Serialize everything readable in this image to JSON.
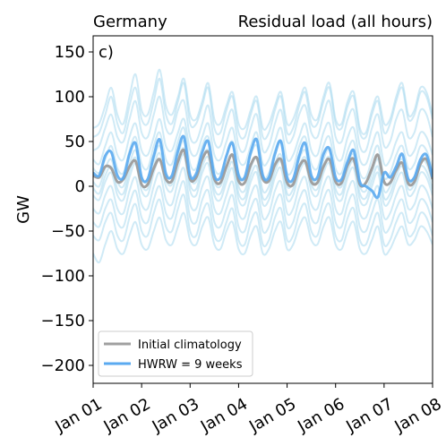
{
  "chart_data": {
    "type": "line",
    "title_left": "Germany",
    "title_right": "Residual load (all hours)",
    "panel_label": "c)",
    "ylabel": "GW",
    "xlabel": "",
    "ylim": [
      -220,
      168
    ],
    "xlim": [
      0,
      168
    ],
    "y_ticks": [
      -200,
      -150,
      -100,
      -50,
      0,
      50,
      100,
      150
    ],
    "y_tick_labels": [
      "−200",
      "−150",
      "−100",
      "−50",
      "0",
      "50",
      "100",
      "150"
    ],
    "x_ticks": [
      0,
      24,
      48,
      72,
      96,
      120,
      144,
      168
    ],
    "x_tick_labels": [
      "Jan 01",
      "Jan 02",
      "Jan 03",
      "Jan 04",
      "Jan 05",
      "Jan 06",
      "Jan 07",
      "Jan 08"
    ],
    "grid": false,
    "legend_position": "lower-left",
    "colors": {
      "climatology": "#a0a0a0",
      "hwrw": "#5aaaf0",
      "ensemble": "#a8d8ee"
    },
    "series": [
      {
        "name": "Initial climatology",
        "x": [
          0,
          3,
          6,
          9,
          12,
          15,
          18,
          21,
          24,
          27,
          30,
          33,
          36,
          39,
          42,
          45,
          48,
          51,
          54,
          57,
          60,
          63,
          66,
          69,
          72,
          75,
          78,
          81,
          84,
          87,
          90,
          93,
          96,
          99,
          102,
          105,
          108,
          111,
          114,
          117,
          120,
          123,
          126,
          129,
          132,
          135,
          138,
          141,
          144,
          147,
          150,
          153,
          156,
          159,
          162,
          165,
          168
        ],
        "values": [
          12,
          10,
          22,
          20,
          5,
          8,
          22,
          28,
          2,
          2,
          20,
          30,
          8,
          6,
          28,
          40,
          8,
          10,
          30,
          38,
          8,
          4,
          22,
          35,
          6,
          4,
          24,
          32,
          8,
          6,
          24,
          30,
          4,
          2,
          22,
          28,
          5,
          4,
          22,
          30,
          5,
          4,
          24,
          30,
          2,
          4,
          20,
          35,
          5,
          4,
          18,
          26,
          3,
          5,
          25,
          30,
          8
        ]
      },
      {
        "name": "HWRW = 9 weeks",
        "x": [
          0,
          3,
          6,
          9,
          12,
          15,
          18,
          21,
          24,
          27,
          30,
          33,
          36,
          39,
          42,
          45,
          48,
          51,
          54,
          57,
          60,
          63,
          66,
          69,
          72,
          75,
          78,
          81,
          84,
          87,
          90,
          93,
          96,
          99,
          102,
          105,
          108,
          111,
          114,
          117,
          120,
          123,
          126,
          129,
          132,
          135,
          138,
          141,
          144,
          147,
          150,
          153,
          156,
          159,
          162,
          165,
          168
        ],
        "values": [
          15,
          12,
          34,
          38,
          12,
          10,
          36,
          48,
          10,
          8,
          34,
          52,
          14,
          12,
          40,
          55,
          12,
          14,
          38,
          50,
          12,
          10,
          34,
          48,
          12,
          10,
          38,
          52,
          12,
          10,
          36,
          50,
          10,
          8,
          34,
          48,
          12,
          10,
          36,
          42,
          10,
          8,
          28,
          40,
          5,
          0,
          -5,
          -12,
          15,
          10,
          22,
          36,
          8,
          10,
          30,
          35,
          10
        ]
      }
    ],
    "ensemble_members": [
      {
        "values": [
          55,
          60,
          80,
          100,
          70,
          60,
          90,
          110,
          75,
          70,
          95,
          120,
          80,
          70,
          95,
          115,
          70,
          70,
          90,
          110,
          65,
          60,
          85,
          100,
          60,
          55,
          80,
          95,
          55,
          60,
          85,
          100,
          60,
          65,
          90,
          105,
          70,
          70,
          95,
          110,
          70,
          65,
          90,
          100,
          60,
          55,
          80,
          95,
          60,
          70,
          95,
          110,
          75,
          80,
          105,
          100,
          75
        ]
      },
      {
        "values": [
          40,
          45,
          65,
          80,
          55,
          50,
          75,
          95,
          60,
          55,
          80,
          100,
          65,
          60,
          85,
          95,
          55,
          50,
          70,
          90,
          50,
          45,
          70,
          85,
          45,
          40,
          65,
          80,
          40,
          45,
          70,
          85,
          50,
          55,
          80,
          90,
          60,
          55,
          80,
          95,
          55,
          50,
          75,
          85,
          45,
          40,
          65,
          80,
          45,
          50,
          75,
          85,
          55,
          60,
          85,
          80,
          55
        ]
      },
      {
        "values": [
          30,
          25,
          45,
          60,
          35,
          30,
          55,
          70,
          40,
          35,
          55,
          75,
          45,
          40,
          60,
          75,
          40,
          35,
          55,
          70,
          35,
          30,
          50,
          65,
          30,
          25,
          45,
          60,
          25,
          30,
          50,
          65,
          30,
          35,
          55,
          70,
          40,
          35,
          60,
          70,
          35,
          30,
          55,
          65,
          30,
          25,
          45,
          60,
          25,
          30,
          50,
          60,
          35,
          40,
          60,
          55,
          35
        ]
      },
      {
        "values": [
          20,
          15,
          30,
          45,
          20,
          15,
          40,
          55,
          25,
          20,
          45,
          60,
          30,
          25,
          50,
          65,
          25,
          20,
          45,
          55,
          20,
          15,
          35,
          50,
          15,
          10,
          35,
          45,
          10,
          15,
          40,
          50,
          15,
          20,
          45,
          55,
          25,
          20,
          45,
          55,
          20,
          15,
          40,
          50,
          15,
          10,
          30,
          45,
          10,
          15,
          35,
          45,
          20,
          25,
          45,
          40,
          20
        ]
      },
      {
        "values": [
          5,
          0,
          20,
          30,
          5,
          0,
          25,
          40,
          10,
          5,
          30,
          45,
          15,
          10,
          35,
          50,
          10,
          5,
          30,
          40,
          5,
          0,
          20,
          35,
          0,
          -5,
          20,
          30,
          -5,
          0,
          25,
          35,
          0,
          5,
          30,
          40,
          10,
          5,
          30,
          40,
          5,
          0,
          25,
          35,
          0,
          -5,
          15,
          30,
          -5,
          0,
          20,
          30,
          5,
          10,
          30,
          25,
          5
        ]
      },
      {
        "values": [
          -10,
          -15,
          5,
          15,
          -10,
          -15,
          10,
          25,
          -5,
          -10,
          15,
          30,
          0,
          -5,
          20,
          35,
          -5,
          -10,
          15,
          25,
          -10,
          -15,
          5,
          20,
          -15,
          -20,
          5,
          15,
          -20,
          -15,
          10,
          20,
          -15,
          -10,
          15,
          25,
          -5,
          -10,
          15,
          25,
          -10,
          -15,
          10,
          20,
          -15,
          -20,
          0,
          15,
          -20,
          -15,
          5,
          15,
          -10,
          -5,
          15,
          10,
          -10
        ]
      },
      {
        "values": [
          -25,
          -30,
          -10,
          0,
          -25,
          -30,
          -5,
          10,
          -20,
          -25,
          0,
          15,
          -15,
          -20,
          5,
          20,
          -20,
          -25,
          0,
          10,
          -25,
          -30,
          -10,
          5,
          -30,
          -35,
          -10,
          0,
          -35,
          -30,
          -5,
          5,
          -30,
          -25,
          0,
          10,
          -20,
          -25,
          0,
          10,
          -25,
          -30,
          -5,
          5,
          -30,
          -35,
          -15,
          0,
          -35,
          -30,
          -10,
          0,
          -25,
          -20,
          0,
          -5,
          -25
        ]
      },
      {
        "values": [
          -40,
          -45,
          -25,
          -15,
          -40,
          -45,
          -20,
          -5,
          -35,
          -40,
          -15,
          0,
          -30,
          -35,
          -10,
          5,
          -35,
          -40,
          -15,
          -5,
          -40,
          -45,
          -25,
          -10,
          -45,
          -50,
          -25,
          -15,
          -50,
          -45,
          -20,
          -10,
          -45,
          -40,
          -15,
          -5,
          -35,
          -40,
          -15,
          -5,
          -40,
          -45,
          -20,
          -10,
          -45,
          -50,
          -30,
          -15,
          -50,
          -45,
          -25,
          -15,
          -40,
          -35,
          -15,
          -20,
          -40
        ]
      },
      {
        "values": [
          -55,
          -60,
          -40,
          -30,
          -55,
          -60,
          -35,
          -20,
          -50,
          -55,
          -30,
          -15,
          -45,
          -50,
          -25,
          -10,
          -50,
          -55,
          -30,
          -20,
          -55,
          -60,
          -40,
          -25,
          -60,
          -65,
          -40,
          -30,
          -65,
          -60,
          -35,
          -25,
          -60,
          -55,
          -30,
          -20,
          -50,
          -55,
          -30,
          -20,
          -55,
          -60,
          -35,
          -25,
          -60,
          -65,
          -45,
          -30,
          -65,
          -60,
          -40,
          -30,
          -55,
          -50,
          -30,
          -35,
          -55
        ]
      },
      {
        "values": [
          -75,
          -85,
          -65,
          -50,
          -70,
          -75,
          -55,
          -40,
          -65,
          -70,
          -50,
          -35,
          -60,
          -65,
          -45,
          -30,
          -60,
          -65,
          -45,
          -35,
          -65,
          -70,
          -50,
          -40,
          -70,
          -75,
          -55,
          -45,
          -75,
          -70,
          -50,
          -40,
          -70,
          -65,
          -45,
          -35,
          -60,
          -65,
          -45,
          -35,
          -65,
          -70,
          -50,
          -40,
          -70,
          -75,
          -60,
          -45,
          -75,
          -70,
          -55,
          -45,
          -65,
          -60,
          -45,
          -50,
          -65
        ]
      },
      {
        "values": [
          65,
          70,
          90,
          110,
          80,
          70,
          100,
          125,
          85,
          80,
          105,
          130,
          90,
          80,
          100,
          120,
          80,
          75,
          95,
          115,
          75,
          70,
          90,
          105,
          70,
          65,
          85,
          100,
          65,
          70,
          90,
          105,
          70,
          75,
          95,
          110,
          80,
          75,
          100,
          115,
          75,
          70,
          95,
          105,
          65,
          60,
          85,
          100,
          70,
          75,
          100,
          115,
          80,
          85,
          110,
          105,
          80
        ]
      },
      {
        "values": [
          -2,
          -8,
          12,
          22,
          -3,
          -8,
          17,
          32,
          2,
          -3,
          22,
          37,
          7,
          2,
          27,
          42,
          2,
          -3,
          22,
          32,
          -3,
          -8,
          12,
          27,
          -8,
          -13,
          12,
          22,
          -13,
          -8,
          17,
          27,
          -8,
          -3,
          22,
          32,
          2,
          -3,
          22,
          32,
          -3,
          -8,
          17,
          27,
          -8,
          -13,
          7,
          22,
          -13,
          -8,
          12,
          22,
          -3,
          2,
          22,
          17,
          -3
        ]
      }
    ]
  }
}
